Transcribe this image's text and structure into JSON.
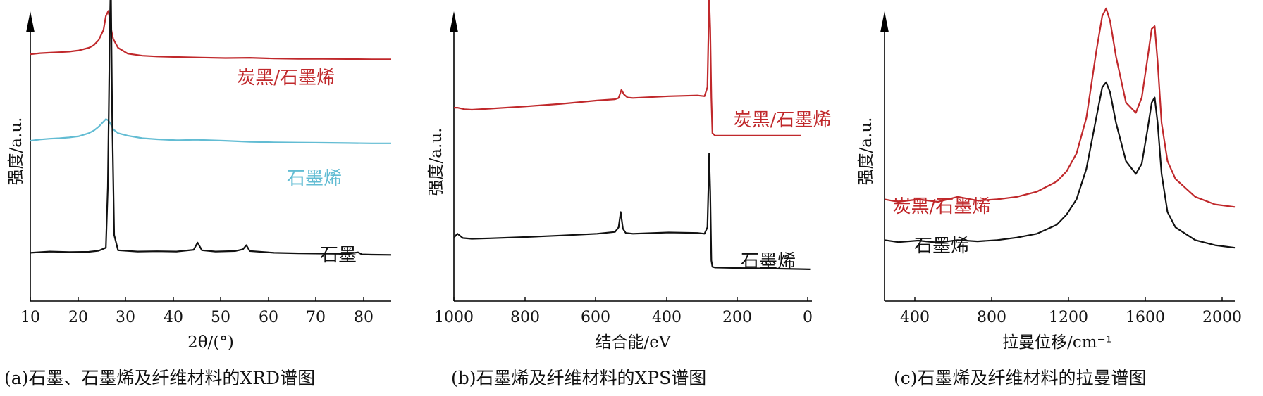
{
  "panels": [
    {
      "caption": "(a)石墨、石墨烯及纤维材料的XRD谱图"
    },
    {
      "caption": "(b)石墨烯及纤维材料的XPS谱图"
    },
    {
      "caption": "(c)石墨烯及纤维材料的拉曼谱图"
    }
  ],
  "chart_data": [
    {
      "type": "line",
      "xlabel": "2θ/(°)",
      "ylabel": "强度/a.u.",
      "xlim": [
        10,
        84
      ],
      "xticks": [
        "10",
        "20",
        "30",
        "40",
        "50",
        "60",
        "70",
        "80"
      ],
      "series": [
        {
          "name": "炭黑/石墨烯",
          "color": "#c0282b",
          "x": [
            10,
            12,
            14,
            16,
            18,
            20,
            22,
            23,
            24,
            25,
            25.5,
            26,
            26.3,
            26.6,
            27,
            28,
            30,
            33,
            36,
            40,
            45,
            50,
            55,
            60,
            65,
            70,
            75,
            80,
            84
          ],
          "y": [
            0.87,
            0.874,
            0.876,
            0.878,
            0.88,
            0.885,
            0.895,
            0.905,
            0.925,
            0.965,
            1.02,
            1.04,
            1.01,
            0.965,
            0.93,
            0.895,
            0.872,
            0.864,
            0.861,
            0.859,
            0.857,
            0.855,
            0.856,
            0.853,
            0.852,
            0.852,
            0.851,
            0.85,
            0.85
          ]
        },
        {
          "name": "石墨烯",
          "color": "#62bcd3",
          "x": [
            10,
            12,
            14,
            16,
            18,
            20,
            22,
            23,
            24,
            25,
            25.5,
            26,
            26.5,
            27,
            28,
            30,
            33,
            36,
            40,
            44,
            50,
            55,
            60,
            65,
            70,
            75,
            80,
            84
          ],
          "y": [
            0.53,
            0.535,
            0.538,
            0.54,
            0.543,
            0.548,
            0.56,
            0.57,
            0.585,
            0.605,
            0.615,
            0.61,
            0.595,
            0.575,
            0.56,
            0.55,
            0.54,
            0.536,
            0.532,
            0.534,
            0.53,
            0.526,
            0.524,
            0.523,
            0.522,
            0.521,
            0.52,
            0.52
          ]
        },
        {
          "name": "石墨",
          "color": "#111111",
          "x": [
            10,
            14,
            18,
            22,
            24,
            25.5,
            25.9,
            26.3,
            26.5,
            26.8,
            27.2,
            28,
            32,
            36,
            40,
            43.5,
            44.3,
            45.2,
            48,
            52,
            53.6,
            54.3,
            55,
            60,
            65,
            70,
            75,
            77.2,
            78,
            80,
            84
          ],
          "y": [
            0.09,
            0.095,
            0.093,
            0.094,
            0.098,
            0.11,
            0.35,
            0.96,
            1.18,
            0.62,
            0.16,
            0.1,
            0.095,
            0.096,
            0.095,
            0.102,
            0.13,
            0.1,
            0.095,
            0.097,
            0.104,
            0.12,
            0.097,
            0.09,
            0.088,
            0.087,
            0.086,
            0.092,
            0.084,
            0.083,
            0.082
          ]
        }
      ]
    },
    {
      "type": "line",
      "xlabel": "结合能/eV",
      "ylabel": "强度/a.u.",
      "xlim": [
        1000,
        0
      ],
      "xticks": [
        "1000",
        "800",
        "600",
        "400",
        "200",
        "0"
      ],
      "series": [
        {
          "name": "炭黑/石墨烯",
          "color": "#c0282b",
          "x": [
            1000,
            990,
            970,
            950,
            900,
            800,
            700,
            600,
            550,
            540,
            532,
            525,
            515,
            500,
            400,
            320,
            300,
            292,
            289,
            287,
            284,
            281,
            278,
            270,
            200,
            100,
            30
          ],
          "y": [
            0.66,
            0.66,
            0.654,
            0.652,
            0.656,
            0.665,
            0.675,
            0.688,
            0.693,
            0.698,
            0.73,
            0.712,
            0.7,
            0.698,
            0.705,
            0.708,
            0.705,
            0.74,
            0.95,
            1.1,
            0.97,
            0.7,
            0.56,
            0.55,
            0.55,
            0.55,
            0.55
          ]
        },
        {
          "name": "石墨烯",
          "color": "#111111",
          "x": [
            1000,
            990,
            975,
            950,
            900,
            800,
            700,
            600,
            550,
            540,
            534,
            528,
            520,
            500,
            400,
            320,
            300,
            292,
            289,
            287,
            284,
            281,
            278,
            270,
            200,
            100,
            5
          ],
          "y": [
            0.15,
            0.165,
            0.148,
            0.145,
            0.147,
            0.152,
            0.158,
            0.165,
            0.172,
            0.19,
            0.25,
            0.185,
            0.168,
            0.165,
            0.17,
            0.168,
            0.165,
            0.19,
            0.35,
            0.48,
            0.33,
            0.06,
            0.035,
            0.032,
            0.03,
            0.028,
            0.025
          ]
        }
      ]
    },
    {
      "type": "line",
      "xlabel": "拉曼位移/cm⁻¹",
      "ylabel": "强度/a.u.",
      "xlim": [
        230,
        2000
      ],
      "xticks": [
        "400",
        "800",
        "1200",
        "1600",
        "2000"
      ],
      "series": [
        {
          "name": "炭黑/石墨烯",
          "color": "#c0282b",
          "x": [
            230,
            300,
            400,
            500,
            600,
            700,
            800,
            900,
            1000,
            1100,
            1150,
            1200,
            1250,
            1300,
            1330,
            1350,
            1370,
            1400,
            1450,
            1500,
            1530,
            1560,
            1580,
            1595,
            1610,
            1630,
            1660,
            1700,
            1800,
            1900,
            2000
          ],
          "y": [
            0.3,
            0.29,
            0.3,
            0.29,
            0.31,
            0.295,
            0.3,
            0.31,
            0.33,
            0.37,
            0.41,
            0.48,
            0.62,
            0.88,
            1.02,
            1.05,
            1.0,
            0.86,
            0.68,
            0.64,
            0.7,
            0.86,
            0.97,
            0.98,
            0.84,
            0.6,
            0.45,
            0.38,
            0.31,
            0.28,
            0.27
          ]
        },
        {
          "name": "石墨烯",
          "color": "#111111",
          "x": [
            230,
            300,
            400,
            500,
            600,
            700,
            800,
            900,
            1000,
            1100,
            1150,
            1200,
            1250,
            1300,
            1330,
            1350,
            1370,
            1400,
            1450,
            1500,
            1530,
            1560,
            1580,
            1595,
            1610,
            1630,
            1660,
            1700,
            1800,
            1900,
            2000
          ],
          "y": [
            0.14,
            0.132,
            0.138,
            0.13,
            0.14,
            0.135,
            0.14,
            0.15,
            0.165,
            0.2,
            0.24,
            0.3,
            0.42,
            0.62,
            0.74,
            0.76,
            0.72,
            0.6,
            0.45,
            0.4,
            0.44,
            0.58,
            0.68,
            0.7,
            0.6,
            0.4,
            0.25,
            0.19,
            0.14,
            0.12,
            0.11
          ]
        }
      ]
    }
  ]
}
